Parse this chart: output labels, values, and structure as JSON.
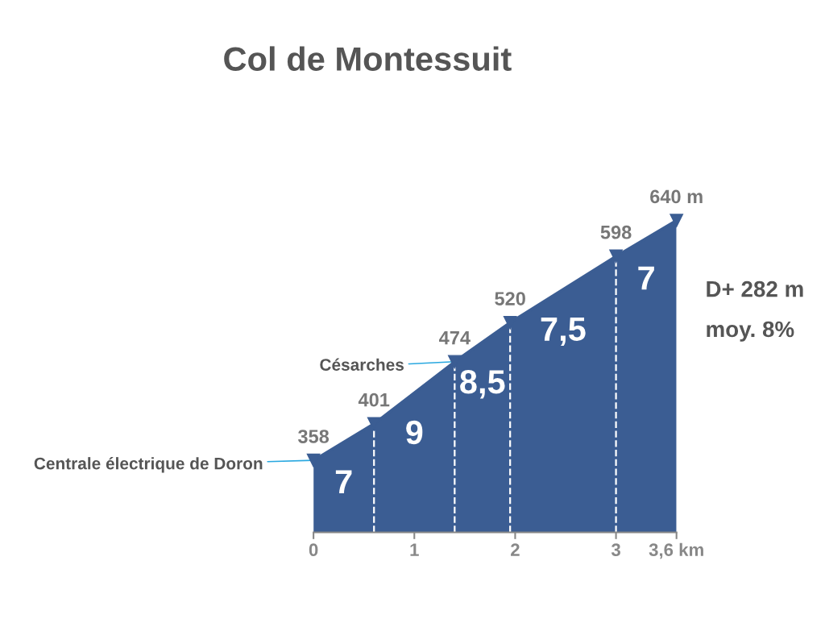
{
  "chart_data": {
    "type": "area",
    "title": "Col de Montessuit",
    "x": [
      0,
      0.6,
      1.4,
      1.95,
      3.0,
      3.6
    ],
    "series": [
      {
        "color": "#3b5d93",
        "values": [
          358,
          401,
          474,
          520,
          598,
          640
        ],
        "value_labels": [
          "358",
          "401",
          "474",
          "520",
          "598",
          "640 m"
        ]
      }
    ],
    "xlim": [
      0,
      3.6
    ],
    "xticks": [
      0,
      1,
      2,
      3,
      {
        "value": 3.6,
        "label": "3,6 km"
      }
    ],
    "tick_labels": "x",
    "marker": "triangle",
    "ref_lines": [
      {
        "axis": "x",
        "value": 0.6,
        "color": "#ffffff",
        "line_style": "dashed"
      },
      {
        "axis": "x",
        "value": 1.4,
        "color": "#ffffff",
        "line_style": "dashed"
      },
      {
        "axis": "x",
        "value": 1.95,
        "color": "#ffffff",
        "line_style": "dashed"
      },
      {
        "axis": "x",
        "value": 3.0,
        "color": "#ffffff",
        "line_style": "dashed"
      }
    ],
    "annotations": [
      {
        "text": "Centrale électrique de Doron",
        "x": 0,
        "y": 358
      },
      {
        "text": "Césarches",
        "x": 1.4,
        "y": 474
      },
      {
        "text": "7",
        "x": 0.3,
        "y": 379.5
      },
      {
        "text": "9",
        "x": 1.0,
        "y": 437.5
      },
      {
        "text": "8,5",
        "x": 1.675,
        "y": 497
      },
      {
        "text": "7,5",
        "x": 2.475,
        "y": 559
      },
      {
        "text": "7",
        "x": 3.3,
        "y": 619
      },
      "D+ 282 m",
      "moy. 8%"
    ]
  }
}
